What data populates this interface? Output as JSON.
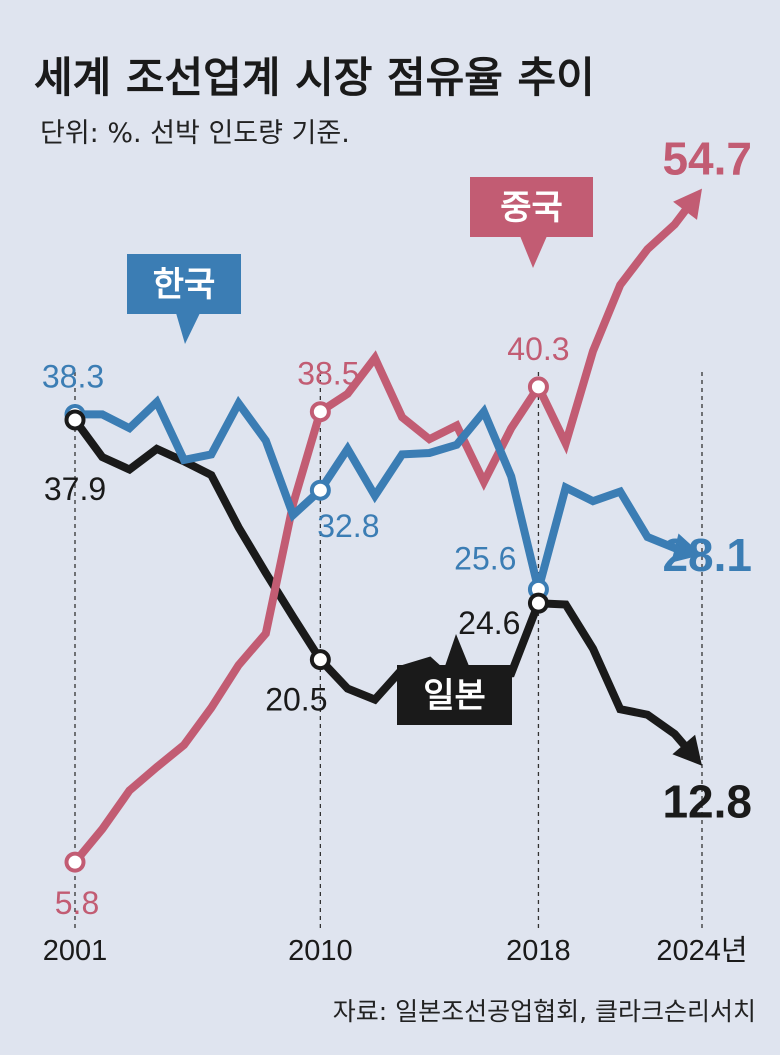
{
  "title": "세계 조선업계 시장 점유율 추이",
  "subtitle": "단위: %. 선박 인도량 기준.",
  "source": "자료: 일본조선공업협회, 클라크슨리서치",
  "chart_data": {
    "type": "line",
    "x": [
      2001,
      2002,
      2003,
      2004,
      2005,
      2006,
      2007,
      2008,
      2009,
      2010,
      2011,
      2012,
      2013,
      2014,
      2015,
      2016,
      2017,
      2018,
      2019,
      2020,
      2021,
      2022,
      2023,
      2024
    ],
    "x_tick_labels": [
      "2001",
      "2010",
      "2018",
      "2024년"
    ],
    "x_tick_values": [
      2001,
      2010,
      2018,
      2024
    ],
    "ylim": [
      0,
      62
    ],
    "grid": false,
    "series": [
      {
        "name": "한국",
        "color": "#3b7db4",
        "values": [
          38.3,
          38.3,
          37.3,
          39.2,
          35.0,
          35.4,
          39.1,
          36.4,
          31.0,
          32.8,
          35.8,
          32.4,
          35.4,
          35.5,
          36.1,
          38.5,
          33.8,
          25.6,
          33.0,
          32.0,
          32.7,
          29.4,
          28.6,
          28.1
        ],
        "labeled_points": [
          {
            "x": 2001,
            "label": "38.3"
          },
          {
            "x": 2010,
            "label": "32.8"
          },
          {
            "x": 2018,
            "label": "25.6"
          }
        ],
        "end_label": "28.1"
      },
      {
        "name": "중국",
        "color": "#c25c73",
        "values": [
          5.8,
          8.2,
          11.0,
          12.7,
          14.3,
          17.0,
          20.1,
          22.4,
          31.8,
          38.5,
          39.8,
          42.4,
          38.1,
          36.5,
          37.5,
          33.4,
          37.3,
          40.3,
          36.2,
          42.9,
          47.7,
          50.3,
          52.1,
          54.7
        ],
        "labeled_points": [
          {
            "x": 2001,
            "label": "5.8"
          },
          {
            "x": 2010,
            "label": "38.5"
          },
          {
            "x": 2018,
            "label": "40.3"
          }
        ],
        "end_label": "54.7"
      },
      {
        "name": "일본",
        "color": "#1a1a1a",
        "values": [
          37.9,
          35.2,
          34.3,
          35.8,
          34.9,
          33.9,
          30.1,
          26.8,
          23.6,
          20.5,
          18.4,
          17.6,
          19.8,
          20.4,
          18.6,
          19.3,
          19.5,
          24.6,
          24.5,
          21.3,
          16.9,
          16.5,
          15.1,
          12.8
        ],
        "labeled_points": [
          {
            "x": 2001,
            "label": "37.9"
          },
          {
            "x": 2010,
            "label": "20.5"
          },
          {
            "x": 2018,
            "label": "24.6"
          }
        ],
        "end_label": "12.8"
      }
    ]
  }
}
